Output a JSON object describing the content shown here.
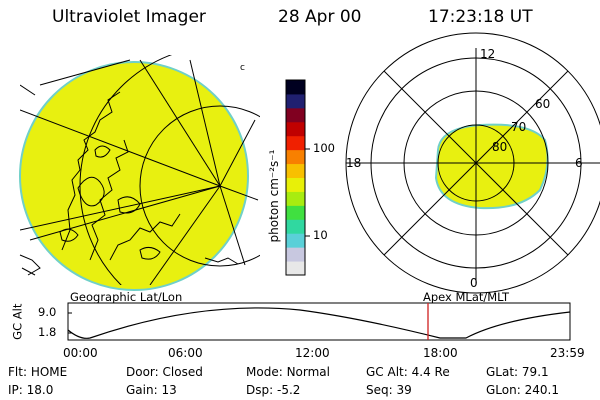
{
  "header": {
    "instrument": "Ultraviolet Imager",
    "date": "28 Apr 00",
    "time": "17:23:18 UT"
  },
  "colorbar": {
    "unit_label": "photon cm⁻²s⁻¹",
    "ticks": [
      "100",
      "10"
    ],
    "colors": [
      "#e8e8e8",
      "#c8c8e0",
      "#5ad0d8",
      "#30d8a0",
      "#40e040",
      "#a8ec10",
      "#e8f008",
      "#f8c000",
      "#f88000",
      "#f02000",
      "#c00000",
      "#800020",
      "#202070",
      "#000020"
    ]
  },
  "polar_plot": {
    "lat_labels": [
      "60",
      "70",
      "80"
    ],
    "mlt_labels": [
      "12",
      "18",
      "6",
      "0"
    ]
  },
  "map_label": "Geographic Lat/Lon",
  "polar_label": "Apex MLat/MLT",
  "altitude_plot": {
    "ylabel": "GC Alt",
    "yticks": [
      "9.0",
      "1.8"
    ],
    "xticks": [
      "00:00",
      "06:00",
      "12:00",
      "18:00",
      "23:59"
    ]
  },
  "status": {
    "row1": [
      {
        "label": "Flt:",
        "value": "HOME"
      },
      {
        "label": "Door:",
        "value": "Closed"
      },
      {
        "label": "Mode:",
        "value": "Normal"
      },
      {
        "label": "GC Alt:",
        "value": "4.4 Re"
      },
      {
        "label": "GLat:",
        "value": "79.1"
      }
    ],
    "row2": [
      {
        "label": "IP:",
        "value": "18.0"
      },
      {
        "label": "Gain:",
        "value": "13"
      },
      {
        "label": "Dsp:",
        "value": "-5.2"
      },
      {
        "label": "Seq:",
        "value": "39"
      },
      {
        "label": "GLon:",
        "value": "240.1"
      }
    ]
  }
}
